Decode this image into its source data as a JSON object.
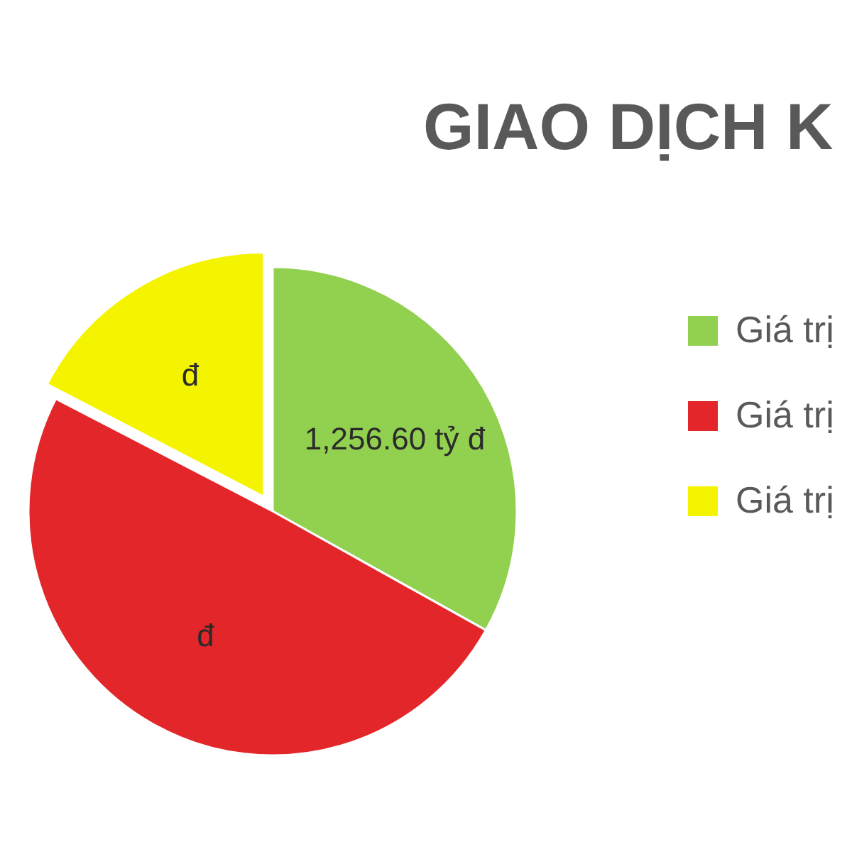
{
  "chart_data": {
    "type": "pie",
    "title": "GIAO DỊCH K",
    "categories": [
      "Giá trị",
      "Giá trị",
      "Giá trị"
    ],
    "values": [
      1256.6,
      1880,
      660
    ],
    "colors": [
      "#92d050",
      "#e3262a",
      "#f4f400"
    ],
    "value_labels": [
      "1,256.60  tỷ đ",
      "đ",
      "đ"
    ],
    "legend": "right"
  }
}
